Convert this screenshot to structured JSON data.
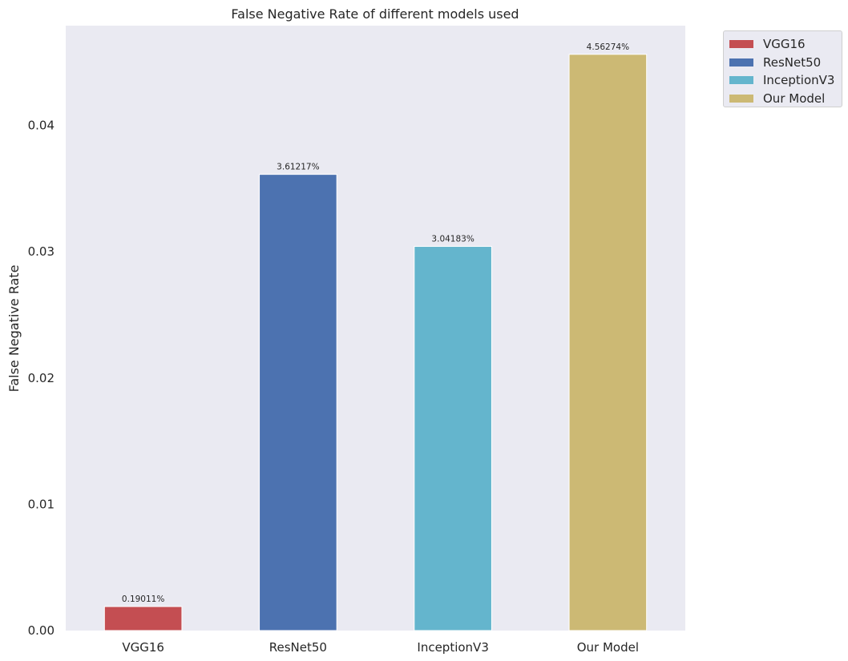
{
  "chart_data": {
    "type": "bar",
    "title": "False Negative Rate of different models used",
    "xlabel": "",
    "ylabel": "False Negative Rate",
    "categories": [
      "VGG16",
      "ResNet50",
      "InceptionV3",
      "Our Model"
    ],
    "values": [
      0.0019011,
      0.0361217,
      0.0304183,
      0.0456274
    ],
    "bar_labels": [
      "0.19011%",
      "3.61217%",
      "3.04183%",
      "4.56274%"
    ],
    "colors": [
      "#c44e52",
      "#4c72b0",
      "#64b5cd",
      "#ccb974"
    ],
    "ylim": [
      0,
      0.0479
    ],
    "yticks": [
      0.0,
      0.01,
      0.02,
      0.03,
      0.04
    ],
    "ytick_labels": [
      "0.00",
      "0.01",
      "0.02",
      "0.03",
      "0.04"
    ],
    "grid": false,
    "background": "#eaeaf2",
    "legend": {
      "placement": "outside-upper-right",
      "entries": [
        "VGG16",
        "ResNet50",
        "InceptionV3",
        "Our Model"
      ]
    }
  }
}
